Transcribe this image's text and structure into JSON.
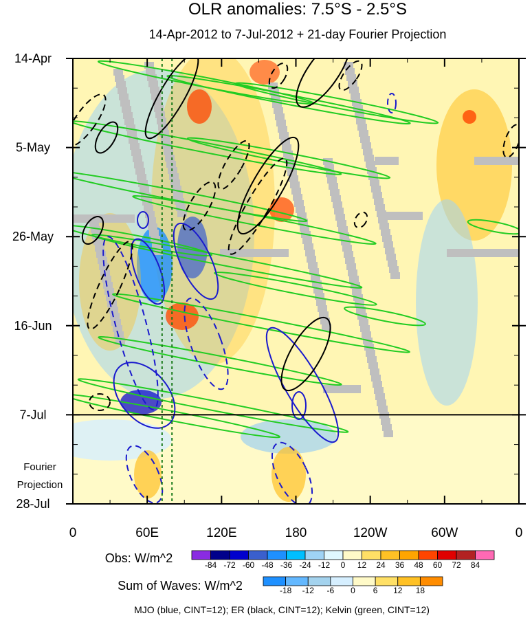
{
  "chart_data": {
    "type": "heatmap",
    "title": "OLR anomalies: 7.5°S - 2.5°S",
    "subtitle": "14-Apr-2012 to 7-Jul-2012 + 21-day Fourier Projection",
    "xticks": [
      "0",
      "60E",
      "120E",
      "180",
      "120W",
      "60W",
      "0"
    ],
    "xtick_lon": [
      0,
      60,
      120,
      180,
      240,
      300,
      360
    ],
    "yticks": [
      "14-Apr",
      "5-May",
      "26-May",
      "16-Jun",
      "7-Jul",
      "28-Jul"
    ],
    "ytick_day": [
      0,
      21,
      42,
      63,
      84,
      105
    ],
    "xlim": [
      0,
      360
    ],
    "ylim_days": [
      0,
      105
    ],
    "obs_end_day": 84,
    "obs_end_label": "7-Jul",
    "projection_label": [
      "Fourier",
      "Projection"
    ],
    "reference_lines_lon": [
      72,
      80
    ],
    "obs_colorbar": {
      "title": "Obs: W/m^2",
      "levels": [
        "-84",
        "-72",
        "-60",
        "-48",
        "-36",
        "-24",
        "-12",
        "0",
        "12",
        "24",
        "36",
        "48",
        "60",
        "72",
        "84"
      ],
      "colors": [
        "#8a2be2",
        "#00008b",
        "#0000cd",
        "#3a5fcd",
        "#1e90ff",
        "#00bfff",
        "#9fd3f5",
        "#e0f8ff",
        "#fffac8",
        "#ffe066",
        "#ffc125",
        "#ffa500",
        "#ff4500",
        "#e00000",
        "#b22222",
        "#ff69b4"
      ]
    },
    "waves_colorbar": {
      "title": "Sum of Waves: W/m^2",
      "levels": [
        "-18",
        "-12",
        "-6",
        "0",
        "6",
        "12",
        "18"
      ],
      "colors": [
        "#1e90ff",
        "#63b8ff",
        "#a4d3ee",
        "#d6efff",
        "#fffac8",
        "#ffe066",
        "#ffc125",
        "#ff8c00"
      ]
    },
    "legend_text": "MJO (blue, CINT=12); ER (black, CINT=12); Kelvin (green, CINT=12)",
    "series_colors": {
      "mjo": "#1a1acd",
      "er": "#000000",
      "kelvin": "#22cc22"
    }
  }
}
